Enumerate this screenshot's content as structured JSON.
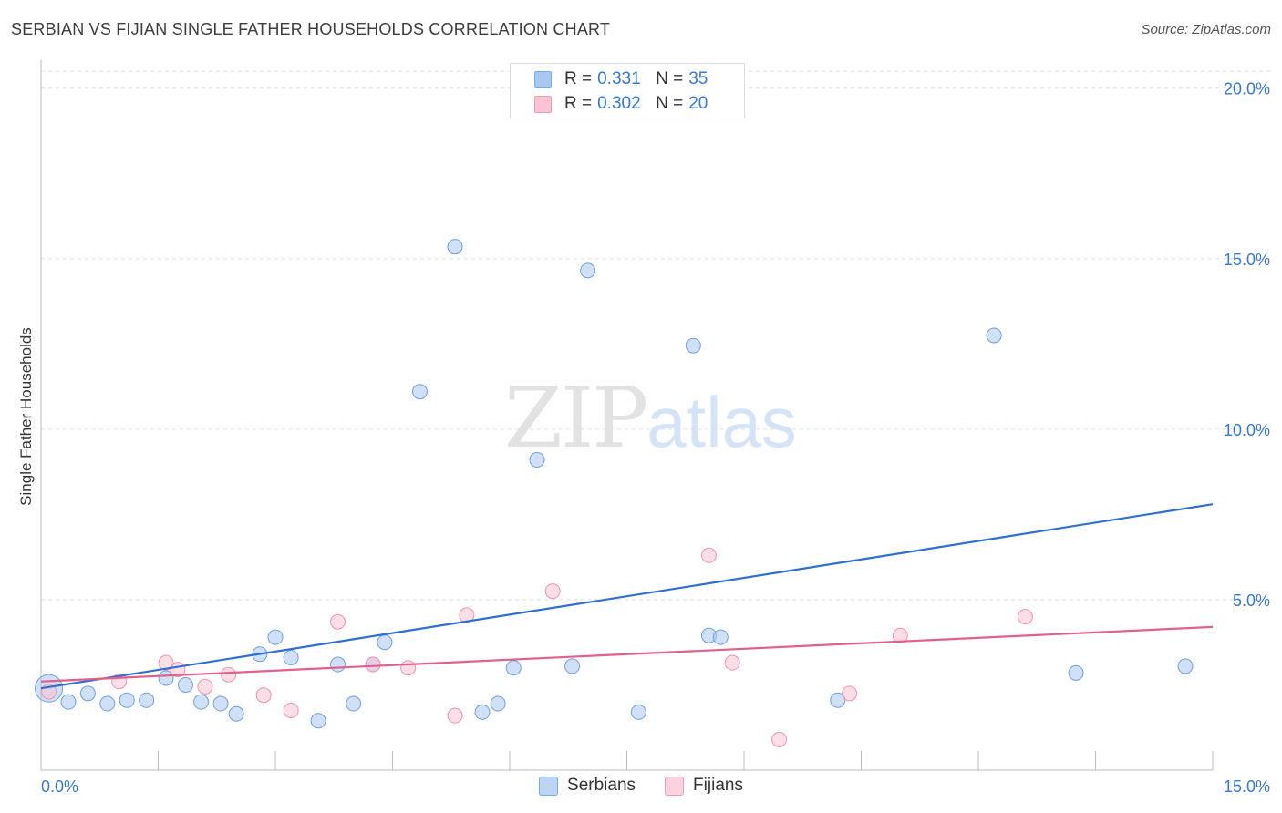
{
  "header": {
    "title": "SERBIAN VS FIJIAN SINGLE FATHER HOUSEHOLDS CORRELATION CHART",
    "source": "Source: ZipAtlas.com"
  },
  "watermark": {
    "zip": "ZIP",
    "atlas": "atlas"
  },
  "legend": {
    "rows": [
      {
        "r_label": "R =",
        "r_value": "0.331",
        "n_label": "N =",
        "n_value": "35",
        "color": "#a9c8f0",
        "border": "#7aaae6"
      },
      {
        "r_label": "R =",
        "r_value": "0.302",
        "n_label": "N =",
        "n_value": "20",
        "color": "#f9c3d3",
        "border": "#f09ab5"
      }
    ]
  },
  "bottom_legend": {
    "serbians": "Serbians",
    "fijians": "Fijians"
  },
  "chart_data": {
    "type": "scatter",
    "title": "SERBIAN VS FIJIAN SINGLE FATHER HOUSEHOLDS CORRELATION CHART",
    "xlabel": "",
    "ylabel": "Single Father Households",
    "xlim": [
      0,
      15
    ],
    "ylim": [
      0,
      20.5
    ],
    "x_tick_labels": [
      "0.0%",
      "15.0%"
    ],
    "y_ticks": [
      5,
      10,
      15,
      20
    ],
    "y_tick_labels": [
      "5.0%",
      "10.0%",
      "15.0%",
      "20.0%"
    ],
    "grid": true,
    "series": [
      {
        "name": "Serbians",
        "color": "#a9c8f0",
        "stroke": "#6f9fdc",
        "line_color": "#2f6fd0",
        "trend": {
          "x": [
            0,
            15
          ],
          "y": [
            2.4,
            7.8
          ]
        },
        "points": [
          {
            "x": 0.1,
            "y": 2.4,
            "size": "large"
          },
          {
            "x": 0.35,
            "y": 2.0
          },
          {
            "x": 0.6,
            "y": 2.25
          },
          {
            "x": 0.85,
            "y": 1.95
          },
          {
            "x": 1.1,
            "y": 2.05
          },
          {
            "x": 1.35,
            "y": 2.05
          },
          {
            "x": 1.6,
            "y": 2.7
          },
          {
            "x": 1.85,
            "y": 2.5
          },
          {
            "x": 2.05,
            "y": 2.0
          },
          {
            "x": 2.3,
            "y": 1.95
          },
          {
            "x": 2.5,
            "y": 1.65
          },
          {
            "x": 2.8,
            "y": 3.4
          },
          {
            "x": 3.0,
            "y": 3.9
          },
          {
            "x": 3.2,
            "y": 3.3
          },
          {
            "x": 3.55,
            "y": 1.45
          },
          {
            "x": 3.8,
            "y": 3.1
          },
          {
            "x": 4.0,
            "y": 1.95
          },
          {
            "x": 4.25,
            "y": 3.1
          },
          {
            "x": 4.4,
            "y": 3.75
          },
          {
            "x": 4.85,
            "y": 11.1
          },
          {
            "x": 5.3,
            "y": 15.35
          },
          {
            "x": 5.65,
            "y": 1.7
          },
          {
            "x": 5.85,
            "y": 1.95
          },
          {
            "x": 6.05,
            "y": 3.0
          },
          {
            "x": 6.35,
            "y": 9.1
          },
          {
            "x": 6.8,
            "y": 3.05
          },
          {
            "x": 7.0,
            "y": 14.65
          },
          {
            "x": 7.65,
            "y": 1.7
          },
          {
            "x": 8.35,
            "y": 12.45
          },
          {
            "x": 8.55,
            "y": 3.95
          },
          {
            "x": 8.7,
            "y": 3.9
          },
          {
            "x": 10.2,
            "y": 2.05
          },
          {
            "x": 12.2,
            "y": 12.75
          },
          {
            "x": 13.25,
            "y": 2.85
          },
          {
            "x": 14.65,
            "y": 3.05
          }
        ]
      },
      {
        "name": "Fijians",
        "color": "#f9c3d3",
        "stroke": "#ee94b0",
        "line_color": "#e2608e",
        "trend": {
          "x": [
            0,
            15
          ],
          "y": [
            2.6,
            4.2
          ]
        },
        "points": [
          {
            "x": 0.1,
            "y": 2.3
          },
          {
            "x": 1.0,
            "y": 2.6
          },
          {
            "x": 1.6,
            "y": 3.15
          },
          {
            "x": 1.75,
            "y": 2.95
          },
          {
            "x": 2.1,
            "y": 2.45
          },
          {
            "x": 2.4,
            "y": 2.8
          },
          {
            "x": 2.85,
            "y": 2.2
          },
          {
            "x": 3.2,
            "y": 1.75
          },
          {
            "x": 3.8,
            "y": 4.35
          },
          {
            "x": 4.25,
            "y": 3.1
          },
          {
            "x": 4.7,
            "y": 3.0
          },
          {
            "x": 5.3,
            "y": 1.6
          },
          {
            "x": 5.45,
            "y": 4.55
          },
          {
            "x": 6.55,
            "y": 5.25
          },
          {
            "x": 8.55,
            "y": 6.3
          },
          {
            "x": 8.85,
            "y": 3.15
          },
          {
            "x": 9.45,
            "y": 0.9
          },
          {
            "x": 10.35,
            "y": 2.25
          },
          {
            "x": 11.0,
            "y": 3.95
          },
          {
            "x": 12.6,
            "y": 4.5
          }
        ]
      }
    ]
  }
}
